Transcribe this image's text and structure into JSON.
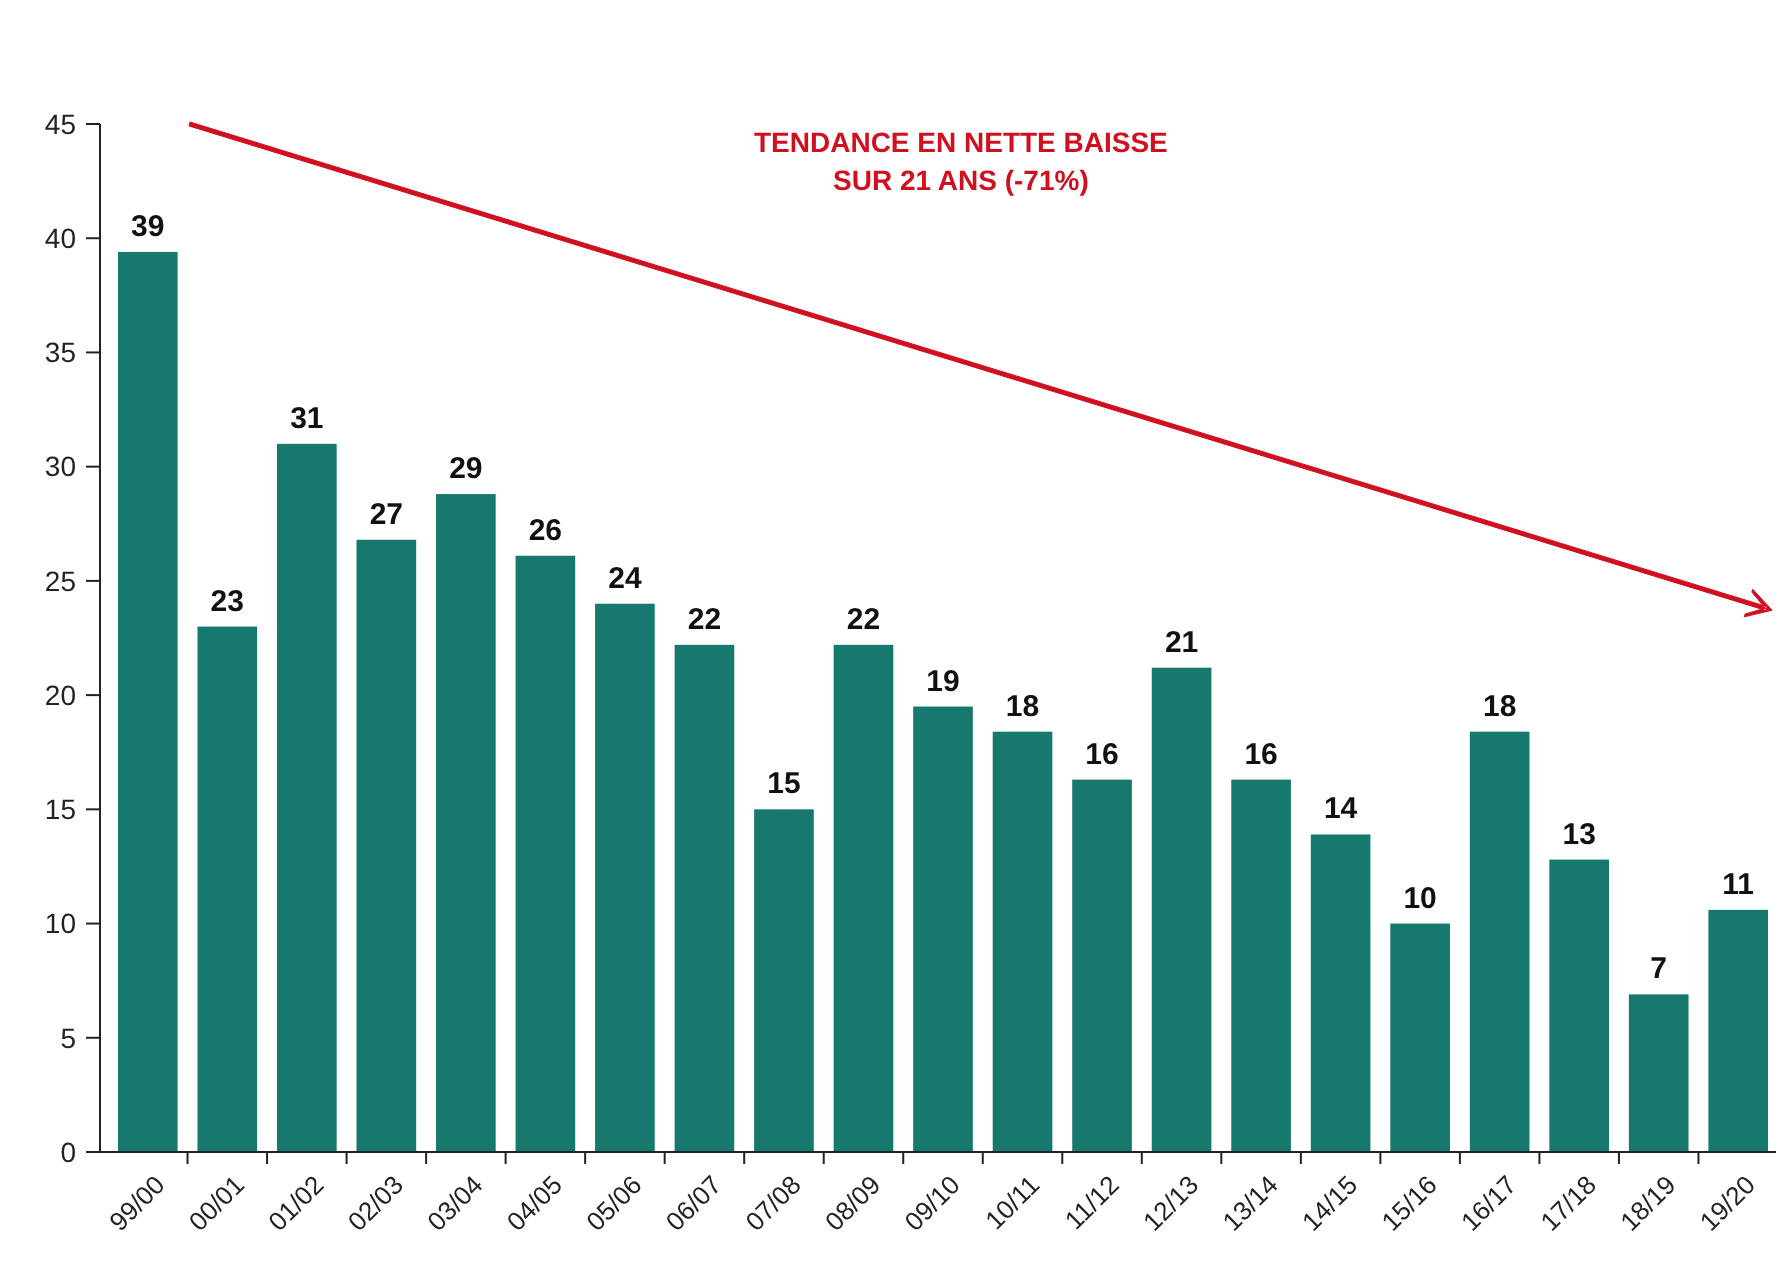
{
  "chart_data": {
    "type": "bar",
    "categories": [
      "99/00",
      "00/01",
      "01/02",
      "02/03",
      "03/04",
      "04/05",
      "05/06",
      "06/07",
      "07/08",
      "08/09",
      "09/10",
      "10/11",
      "11/12",
      "12/13",
      "13/14",
      "14/15",
      "15/16",
      "16/17",
      "17/18",
      "18/19",
      "19/20"
    ],
    "values": [
      39.4,
      23,
      31,
      26.8,
      28.8,
      26.1,
      24,
      22.2,
      15,
      22.2,
      19.5,
      18.4,
      16.3,
      21.2,
      16.3,
      13.9,
      10,
      18.4,
      12.8,
      6.9,
      10.6
    ],
    "value_labels": [
      "39",
      "23",
      "31",
      "27",
      "29",
      "26",
      "24",
      "22",
      "15",
      "22",
      "19",
      "18",
      "16",
      "21",
      "16",
      "14",
      "10",
      "18",
      "13",
      "7",
      "11"
    ],
    "color": "#17786d",
    "ylim": [
      0,
      45
    ],
    "yticks": [
      0,
      5,
      10,
      15,
      20,
      25,
      30,
      35,
      40,
      45
    ],
    "grid": false,
    "annotations": [
      "TENDANCE EN NETTE BAISSE\nSUR 21 ANS (-71%)"
    ]
  }
}
